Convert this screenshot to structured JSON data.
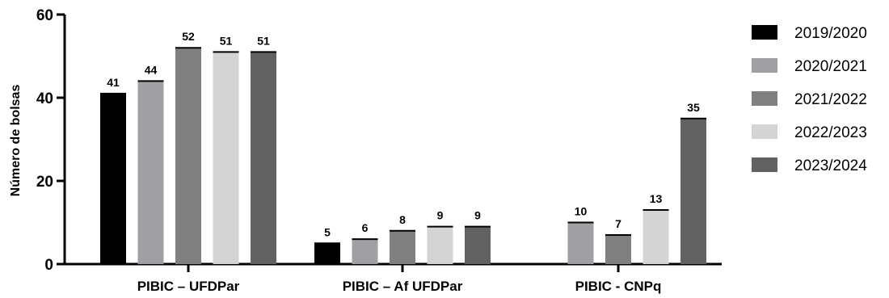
{
  "chart_data": {
    "type": "bar",
    "categories": [
      "PIBIC – UFDPar",
      "PIBIC – Af UFDPar",
      "PIBIC - CNPq"
    ],
    "series": [
      {
        "name": "2019/2020",
        "color": "#000000",
        "values": [
          41,
          5,
          null
        ]
      },
      {
        "name": "2020/2021",
        "color": "#a0a0a4",
        "values": [
          44,
          6,
          10
        ]
      },
      {
        "name": "2021/2022",
        "color": "#808080",
        "values": [
          52,
          8,
          7
        ]
      },
      {
        "name": "2022/2023",
        "color": "#d4d4d4",
        "values": [
          51,
          9,
          13
        ]
      },
      {
        "name": "2023/2024",
        "color": "#626262",
        "values": [
          51,
          9,
          35
        ]
      }
    ],
    "ylabel": "Número de bolsas",
    "xlabel": "",
    "ylim": [
      0,
      60
    ],
    "yticks": [
      0,
      20,
      40,
      60
    ],
    "data_labels": true,
    "grid": false,
    "legend_position": "right"
  }
}
